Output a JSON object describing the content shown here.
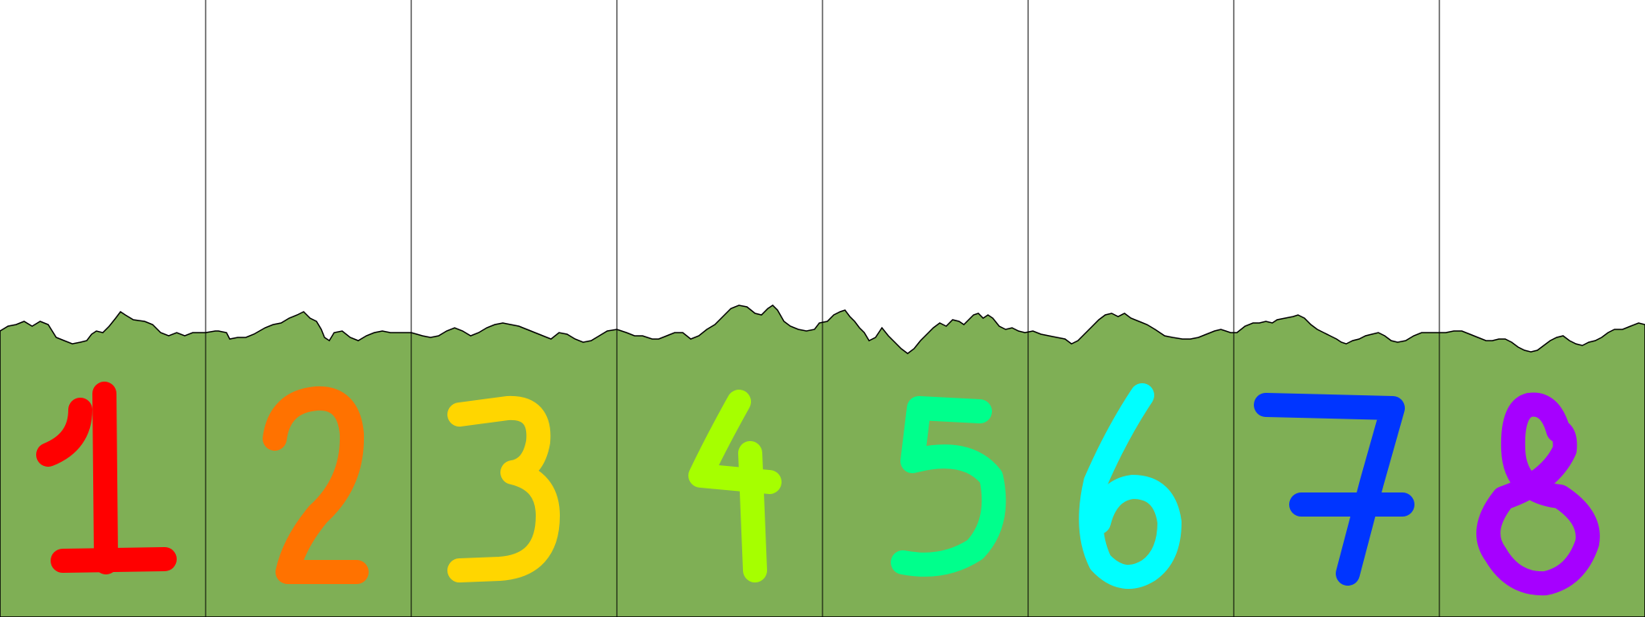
{
  "colors": {
    "sky": "#ffffff",
    "grass": "#7faf55",
    "outline": "#000000"
  },
  "panels": [
    {
      "number": "1",
      "color": "#ff0000"
    },
    {
      "number": "2",
      "color": "#ff7200"
    },
    {
      "number": "3",
      "color": "#ffd600"
    },
    {
      "number": "4",
      "color": "#a6ff00"
    },
    {
      "number": "5",
      "color": "#00ff8c"
    },
    {
      "number": "6",
      "color": "#00ffff"
    },
    {
      "number": "7",
      "color": "#0035ff"
    },
    {
      "number": "8",
      "color": "#a600ff"
    }
  ]
}
